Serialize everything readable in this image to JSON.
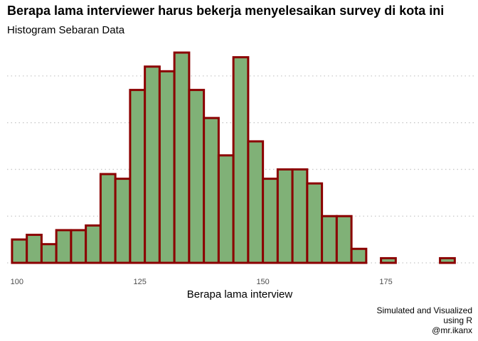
{
  "title": "Berapa lama interviewer harus bekerja menyelesaikan survey di kota ini",
  "subtitle": "Histogram Sebaran Data",
  "caption": [
    "Simulated and Visualized",
    "using R",
    "@mr.ikanx"
  ],
  "colors": {
    "fill": "#80b177",
    "outline": "#8b0000",
    "grid": "#c8c8c8",
    "tick": "#4d4d4d"
  },
  "chart_data": {
    "type": "bar",
    "title": "Berapa lama interviewer harus bekerja menyelesaikan survey di kota ini",
    "subtitle": "Histogram Sebaran Data",
    "xlabel": "Berapa lama interview",
    "ylabel": "",
    "xlim": [
      98,
      193
    ],
    "ylim": [
      0,
      45
    ],
    "x_ticks": [
      100,
      125,
      150,
      175
    ],
    "y_ticks": [
      0,
      10,
      20,
      30,
      40
    ],
    "show_y_tick_labels": false,
    "grid": "horizontal-dotted",
    "bin_width": 3,
    "bins": [
      {
        "x0": 99,
        "x1": 102,
        "value": 5
      },
      {
        "x0": 102,
        "x1": 105,
        "value": 6
      },
      {
        "x0": 105,
        "x1": 108,
        "value": 4
      },
      {
        "x0": 108,
        "x1": 111,
        "value": 7
      },
      {
        "x0": 111,
        "x1": 114,
        "value": 7
      },
      {
        "x0": 114,
        "x1": 117,
        "value": 8
      },
      {
        "x0": 117,
        "x1": 120,
        "value": 19
      },
      {
        "x0": 120,
        "x1": 123,
        "value": 18
      },
      {
        "x0": 123,
        "x1": 126,
        "value": 37
      },
      {
        "x0": 126,
        "x1": 129,
        "value": 42
      },
      {
        "x0": 129,
        "x1": 132,
        "value": 41
      },
      {
        "x0": 132,
        "x1": 135,
        "value": 45
      },
      {
        "x0": 135,
        "x1": 138,
        "value": 37
      },
      {
        "x0": 138,
        "x1": 141,
        "value": 31
      },
      {
        "x0": 141,
        "x1": 144,
        "value": 23
      },
      {
        "x0": 144,
        "x1": 147,
        "value": 44
      },
      {
        "x0": 147,
        "x1": 150,
        "value": 26
      },
      {
        "x0": 150,
        "x1": 153,
        "value": 18
      },
      {
        "x0": 153,
        "x1": 156,
        "value": 20
      },
      {
        "x0": 156,
        "x1": 159,
        "value": 20
      },
      {
        "x0": 159,
        "x1": 162,
        "value": 17
      },
      {
        "x0": 162,
        "x1": 165,
        "value": 10
      },
      {
        "x0": 165,
        "x1": 168,
        "value": 10
      },
      {
        "x0": 168,
        "x1": 171,
        "value": 3
      },
      {
        "x0": 171,
        "x1": 174,
        "value": 0
      },
      {
        "x0": 174,
        "x1": 177,
        "value": 1
      },
      {
        "x0": 177,
        "x1": 180,
        "value": 0
      },
      {
        "x0": 180,
        "x1": 183,
        "value": 0
      },
      {
        "x0": 183,
        "x1": 186,
        "value": 0
      },
      {
        "x0": 186,
        "x1": 189,
        "value": 1
      }
    ]
  }
}
